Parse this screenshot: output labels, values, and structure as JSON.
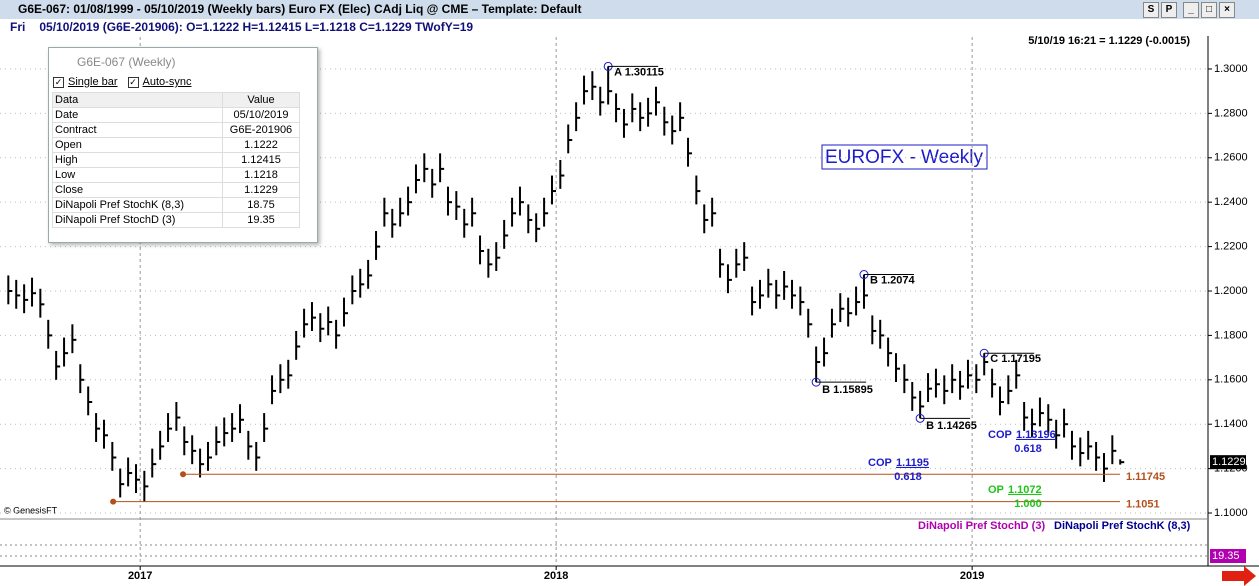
{
  "window": {
    "title": "G6E-067:  01/08/1999 - 05/10/2019  (Weekly bars)   Euro FX (Elec) CAdj Liq @ CME  –  Template: Default",
    "buttons": [
      "S",
      "P"
    ]
  },
  "info_line": {
    "day": "Fri",
    "text": "05/10/2019 (G6E-201906):  O=1.1222  H=1.12415  L=1.1218  C=1.1229  TWofY=19"
  },
  "chart_data": {
    "type": "ohlc",
    "title": "EUROFX - Weekly",
    "timestamp": "5/10/19 16:21 = 1.1229 (-0.0015)",
    "copyright": "© GenesisFT",
    "color": "#000000",
    "grid": true,
    "xlim": [
      2016.663,
      2019.567
    ],
    "xticks": [
      2017,
      2018,
      2019
    ],
    "ylim": [
      1.0982,
      1.3144
    ],
    "yticks": [
      {
        "value": 1.1,
        "label": "1.1000"
      },
      {
        "value": 1.12,
        "label": "1.1200"
      },
      {
        "value": 1.14,
        "label": "1.1400"
      },
      {
        "value": 1.16,
        "label": "1.1600"
      },
      {
        "value": 1.18,
        "label": "1.1800"
      },
      {
        "value": 1.2,
        "label": "1.2000"
      },
      {
        "value": 1.22,
        "label": "1.2200"
      },
      {
        "value": 1.24,
        "label": "1.2400"
      },
      {
        "value": 1.26,
        "label": "1.2600"
      },
      {
        "value": 1.28,
        "label": "1.2800"
      },
      {
        "value": 1.3,
        "label": "1.3000"
      }
    ],
    "x": [
      2016.683,
      2016.702,
      2016.721,
      2016.74,
      2016.76,
      2016.779,
      2016.798,
      2016.817,
      2016.837,
      2016.856,
      2016.875,
      2016.894,
      2016.913,
      2016.933,
      2016.952,
      2016.971,
      2016.99,
      2017.01,
      2017.029,
      2017.048,
      2017.067,
      2017.087,
      2017.106,
      2017.125,
      2017.144,
      2017.163,
      2017.183,
      2017.202,
      2017.221,
      2017.24,
      2017.26,
      2017.279,
      2017.298,
      2017.317,
      2017.337,
      2017.356,
      2017.375,
      2017.394,
      2017.413,
      2017.433,
      2017.452,
      2017.471,
      2017.49,
      2017.51,
      2017.529,
      2017.548,
      2017.567,
      2017.587,
      2017.606,
      2017.625,
      2017.644,
      2017.663,
      2017.683,
      2017.702,
      2017.721,
      2017.74,
      2017.76,
      2017.779,
      2017.798,
      2017.817,
      2017.837,
      2017.856,
      2017.875,
      2017.894,
      2017.913,
      2017.933,
      2017.952,
      2017.971,
      2017.99,
      2018.01,
      2018.029,
      2018.048,
      2018.067,
      2018.087,
      2018.106,
      2018.125,
      2018.144,
      2018.163,
      2018.183,
      2018.202,
      2018.221,
      2018.24,
      2018.26,
      2018.279,
      2018.298,
      2018.317,
      2018.337,
      2018.356,
      2018.375,
      2018.394,
      2018.413,
      2018.433,
      2018.452,
      2018.471,
      2018.49,
      2018.51,
      2018.529,
      2018.548,
      2018.567,
      2018.587,
      2018.606,
      2018.625,
      2018.644,
      2018.663,
      2018.683,
      2018.702,
      2018.721,
      2018.74,
      2018.76,
      2018.779,
      2018.798,
      2018.817,
      2018.837,
      2018.856,
      2018.875,
      2018.894,
      2018.913,
      2018.933,
      2018.952,
      2018.971,
      2018.99,
      2019.01,
      2019.029,
      2019.048,
      2019.067,
      2019.087,
      2019.106,
      2019.125,
      2019.144,
      2019.163,
      2019.183,
      2019.202,
      2019.221,
      2019.24,
      2019.26,
      2019.279,
      2019.298,
      2019.317,
      2019.337,
      2019.356
    ],
    "high": [
      1.207,
      1.205,
      1.203,
      1.206,
      1.201,
      1.187,
      1.173,
      1.179,
      1.185,
      1.167,
      1.157,
      1.145,
      1.142,
      1.132,
      1.12,
      1.125,
      1.122,
      1.119,
      1.129,
      1.137,
      1.145,
      1.15,
      1.139,
      1.135,
      1.129,
      1.132,
      1.139,
      1.143,
      1.145,
      1.149,
      1.137,
      1.132,
      1.145,
      1.162,
      1.167,
      1.169,
      1.182,
      1.192,
      1.195,
      1.19,
      1.193,
      1.187,
      1.197,
      1.207,
      1.21,
      1.214,
      1.227,
      1.242,
      1.237,
      1.242,
      1.247,
      1.257,
      1.262,
      1.255,
      1.262,
      1.247,
      1.245,
      1.237,
      1.242,
      1.225,
      1.219,
      1.222,
      1.232,
      1.242,
      1.247,
      1.239,
      1.235,
      1.242,
      1.252,
      1.259,
      1.275,
      1.285,
      1.297,
      1.299,
      1.292,
      1.30115,
      1.289,
      1.282,
      1.289,
      1.285,
      1.287,
      1.292,
      1.283,
      1.279,
      1.285,
      1.269,
      1.252,
      1.239,
      1.242,
      1.219,
      1.212,
      1.219,
      1.222,
      1.202,
      1.205,
      1.21,
      1.205,
      1.209,
      1.205,
      1.202,
      1.192,
      1.175,
      1.179,
      1.192,
      1.199,
      1.197,
      1.202,
      1.2074,
      1.189,
      1.187,
      1.179,
      1.172,
      1.167,
      1.159,
      1.155,
      1.163,
      1.165,
      1.162,
      1.167,
      1.164,
      1.169,
      1.167,
      1.17195,
      1.165,
      1.157,
      1.162,
      1.169,
      1.15,
      1.147,
      1.152,
      1.149,
      1.142,
      1.147,
      1.137,
      1.134,
      1.137,
      1.132,
      1.127,
      1.135,
      1.12415
    ],
    "low": [
      1.194,
      1.192,
      1.19,
      1.193,
      1.188,
      1.174,
      1.16,
      1.166,
      1.172,
      1.154,
      1.144,
      1.132,
      1.129,
      1.119,
      1.107,
      1.112,
      1.109,
      1.1051,
      1.116,
      1.124,
      1.132,
      1.137,
      1.126,
      1.122,
      1.116,
      1.119,
      1.126,
      1.13,
      1.132,
      1.136,
      1.124,
      1.119,
      1.132,
      1.149,
      1.154,
      1.156,
      1.169,
      1.179,
      1.182,
      1.177,
      1.18,
      1.174,
      1.184,
      1.194,
      1.197,
      1.201,
      1.214,
      1.229,
      1.224,
      1.229,
      1.234,
      1.244,
      1.249,
      1.242,
      1.249,
      1.234,
      1.232,
      1.224,
      1.229,
      1.212,
      1.206,
      1.209,
      1.219,
      1.229,
      1.234,
      1.226,
      1.222,
      1.229,
      1.239,
      1.246,
      1.262,
      1.272,
      1.284,
      1.286,
      1.279,
      1.284,
      1.276,
      1.269,
      1.276,
      1.272,
      1.274,
      1.279,
      1.27,
      1.266,
      1.272,
      1.256,
      1.239,
      1.226,
      1.229,
      1.206,
      1.199,
      1.206,
      1.209,
      1.189,
      1.192,
      1.197,
      1.192,
      1.196,
      1.192,
      1.189,
      1.179,
      1.15895,
      1.166,
      1.179,
      1.186,
      1.184,
      1.189,
      1.192,
      1.176,
      1.174,
      1.166,
      1.159,
      1.154,
      1.146,
      1.14265,
      1.15,
      1.152,
      1.149,
      1.154,
      1.151,
      1.156,
      1.154,
      1.162,
      1.152,
      1.144,
      1.149,
      1.156,
      1.137,
      1.134,
      1.139,
      1.136,
      1.129,
      1.134,
      1.124,
      1.121,
      1.124,
      1.119,
      1.114,
      1.122,
      1.1218
    ],
    "close": [
      1.2,
      1.198,
      1.196,
      1.199,
      1.194,
      1.18,
      1.166,
      1.172,
      1.178,
      1.16,
      1.15,
      1.138,
      1.135,
      1.125,
      1.113,
      1.118,
      1.115,
      1.112,
      1.122,
      1.13,
      1.138,
      1.143,
      1.132,
      1.128,
      1.122,
      1.125,
      1.132,
      1.136,
      1.138,
      1.142,
      1.13,
      1.125,
      1.138,
      1.155,
      1.16,
      1.162,
      1.175,
      1.185,
      1.188,
      1.183,
      1.186,
      1.18,
      1.19,
      1.2,
      1.203,
      1.207,
      1.22,
      1.235,
      1.23,
      1.235,
      1.24,
      1.25,
      1.255,
      1.248,
      1.255,
      1.24,
      1.238,
      1.23,
      1.235,
      1.218,
      1.212,
      1.215,
      1.225,
      1.235,
      1.24,
      1.232,
      1.228,
      1.235,
      1.245,
      1.252,
      1.268,
      1.278,
      1.29,
      1.292,
      1.285,
      1.29,
      1.282,
      1.275,
      1.282,
      1.278,
      1.28,
      1.285,
      1.276,
      1.272,
      1.278,
      1.262,
      1.245,
      1.232,
      1.235,
      1.212,
      1.205,
      1.212,
      1.215,
      1.195,
      1.198,
      1.203,
      1.198,
      1.202,
      1.198,
      1.195,
      1.185,
      1.168,
      1.172,
      1.185,
      1.192,
      1.19,
      1.195,
      1.198,
      1.182,
      1.18,
      1.172,
      1.165,
      1.16,
      1.152,
      1.148,
      1.156,
      1.158,
      1.155,
      1.16,
      1.157,
      1.162,
      1.16,
      1.168,
      1.158,
      1.15,
      1.155,
      1.162,
      1.143,
      1.14,
      1.145,
      1.142,
      1.135,
      1.14,
      1.13,
      1.127,
      1.13,
      1.125,
      1.12,
      1.128,
      1.1229
    ],
    "last_price": 1.1229,
    "points": [
      {
        "label": "A 1.30115",
        "x": 2018.125,
        "value": 1.30115
      },
      {
        "label": "B 1.15895",
        "x": 2018.625,
        "value": 1.15895
      },
      {
        "label": "B 1.2074",
        "x": 2018.74,
        "value": 1.2074
      },
      {
        "label": "B 1.14265",
        "x": 2018.875,
        "value": 1.14265
      },
      {
        "label": "C 1.17195",
        "x": 2019.029,
        "value": 1.17195
      }
    ],
    "levels": [
      {
        "value": 1.11745,
        "x0": 2017.103,
        "color": "#b5501c"
      },
      {
        "value": 1.1051,
        "x0": 2016.935,
        "color": "#b5501c"
      }
    ],
    "projections": [
      {
        "name": "COP",
        "value": "1.13196",
        "ratio": "0.618",
        "color": "#1c1cc8"
      },
      {
        "name": "COP",
        "value": "1.1195",
        "ratio": "0.618",
        "color": "#1c1cc8"
      },
      {
        "name": "OP",
        "value": "1.1072",
        "ratio": "1.000",
        "color": "#22c41c"
      }
    ],
    "indicators": [
      {
        "name": "DiNapoli Pref StochD (3)",
        "color": "#b000b0",
        "last": 19.35
      },
      {
        "name": "DiNapoli Pref StochK (8,3)",
        "color": "#000090",
        "last": 18.75
      }
    ]
  },
  "data_window": {
    "title": "G6E-067 (Weekly)",
    "options": [
      "Single bar",
      "Auto-sync"
    ],
    "columns": [
      "Data",
      "Value"
    ],
    "rows": [
      [
        "Date",
        "05/10/2019"
      ],
      [
        "Contract",
        "G6E-201906"
      ],
      [
        "Open",
        "1.1222"
      ],
      [
        "High",
        "1.12415"
      ],
      [
        "Low",
        "1.1218"
      ],
      [
        "Close",
        "1.1229"
      ],
      [
        "DiNapoli Pref StochK (8,3)",
        "18.75"
      ],
      [
        "DiNapoli Pref StochD (3)",
        "19.35"
      ]
    ]
  }
}
